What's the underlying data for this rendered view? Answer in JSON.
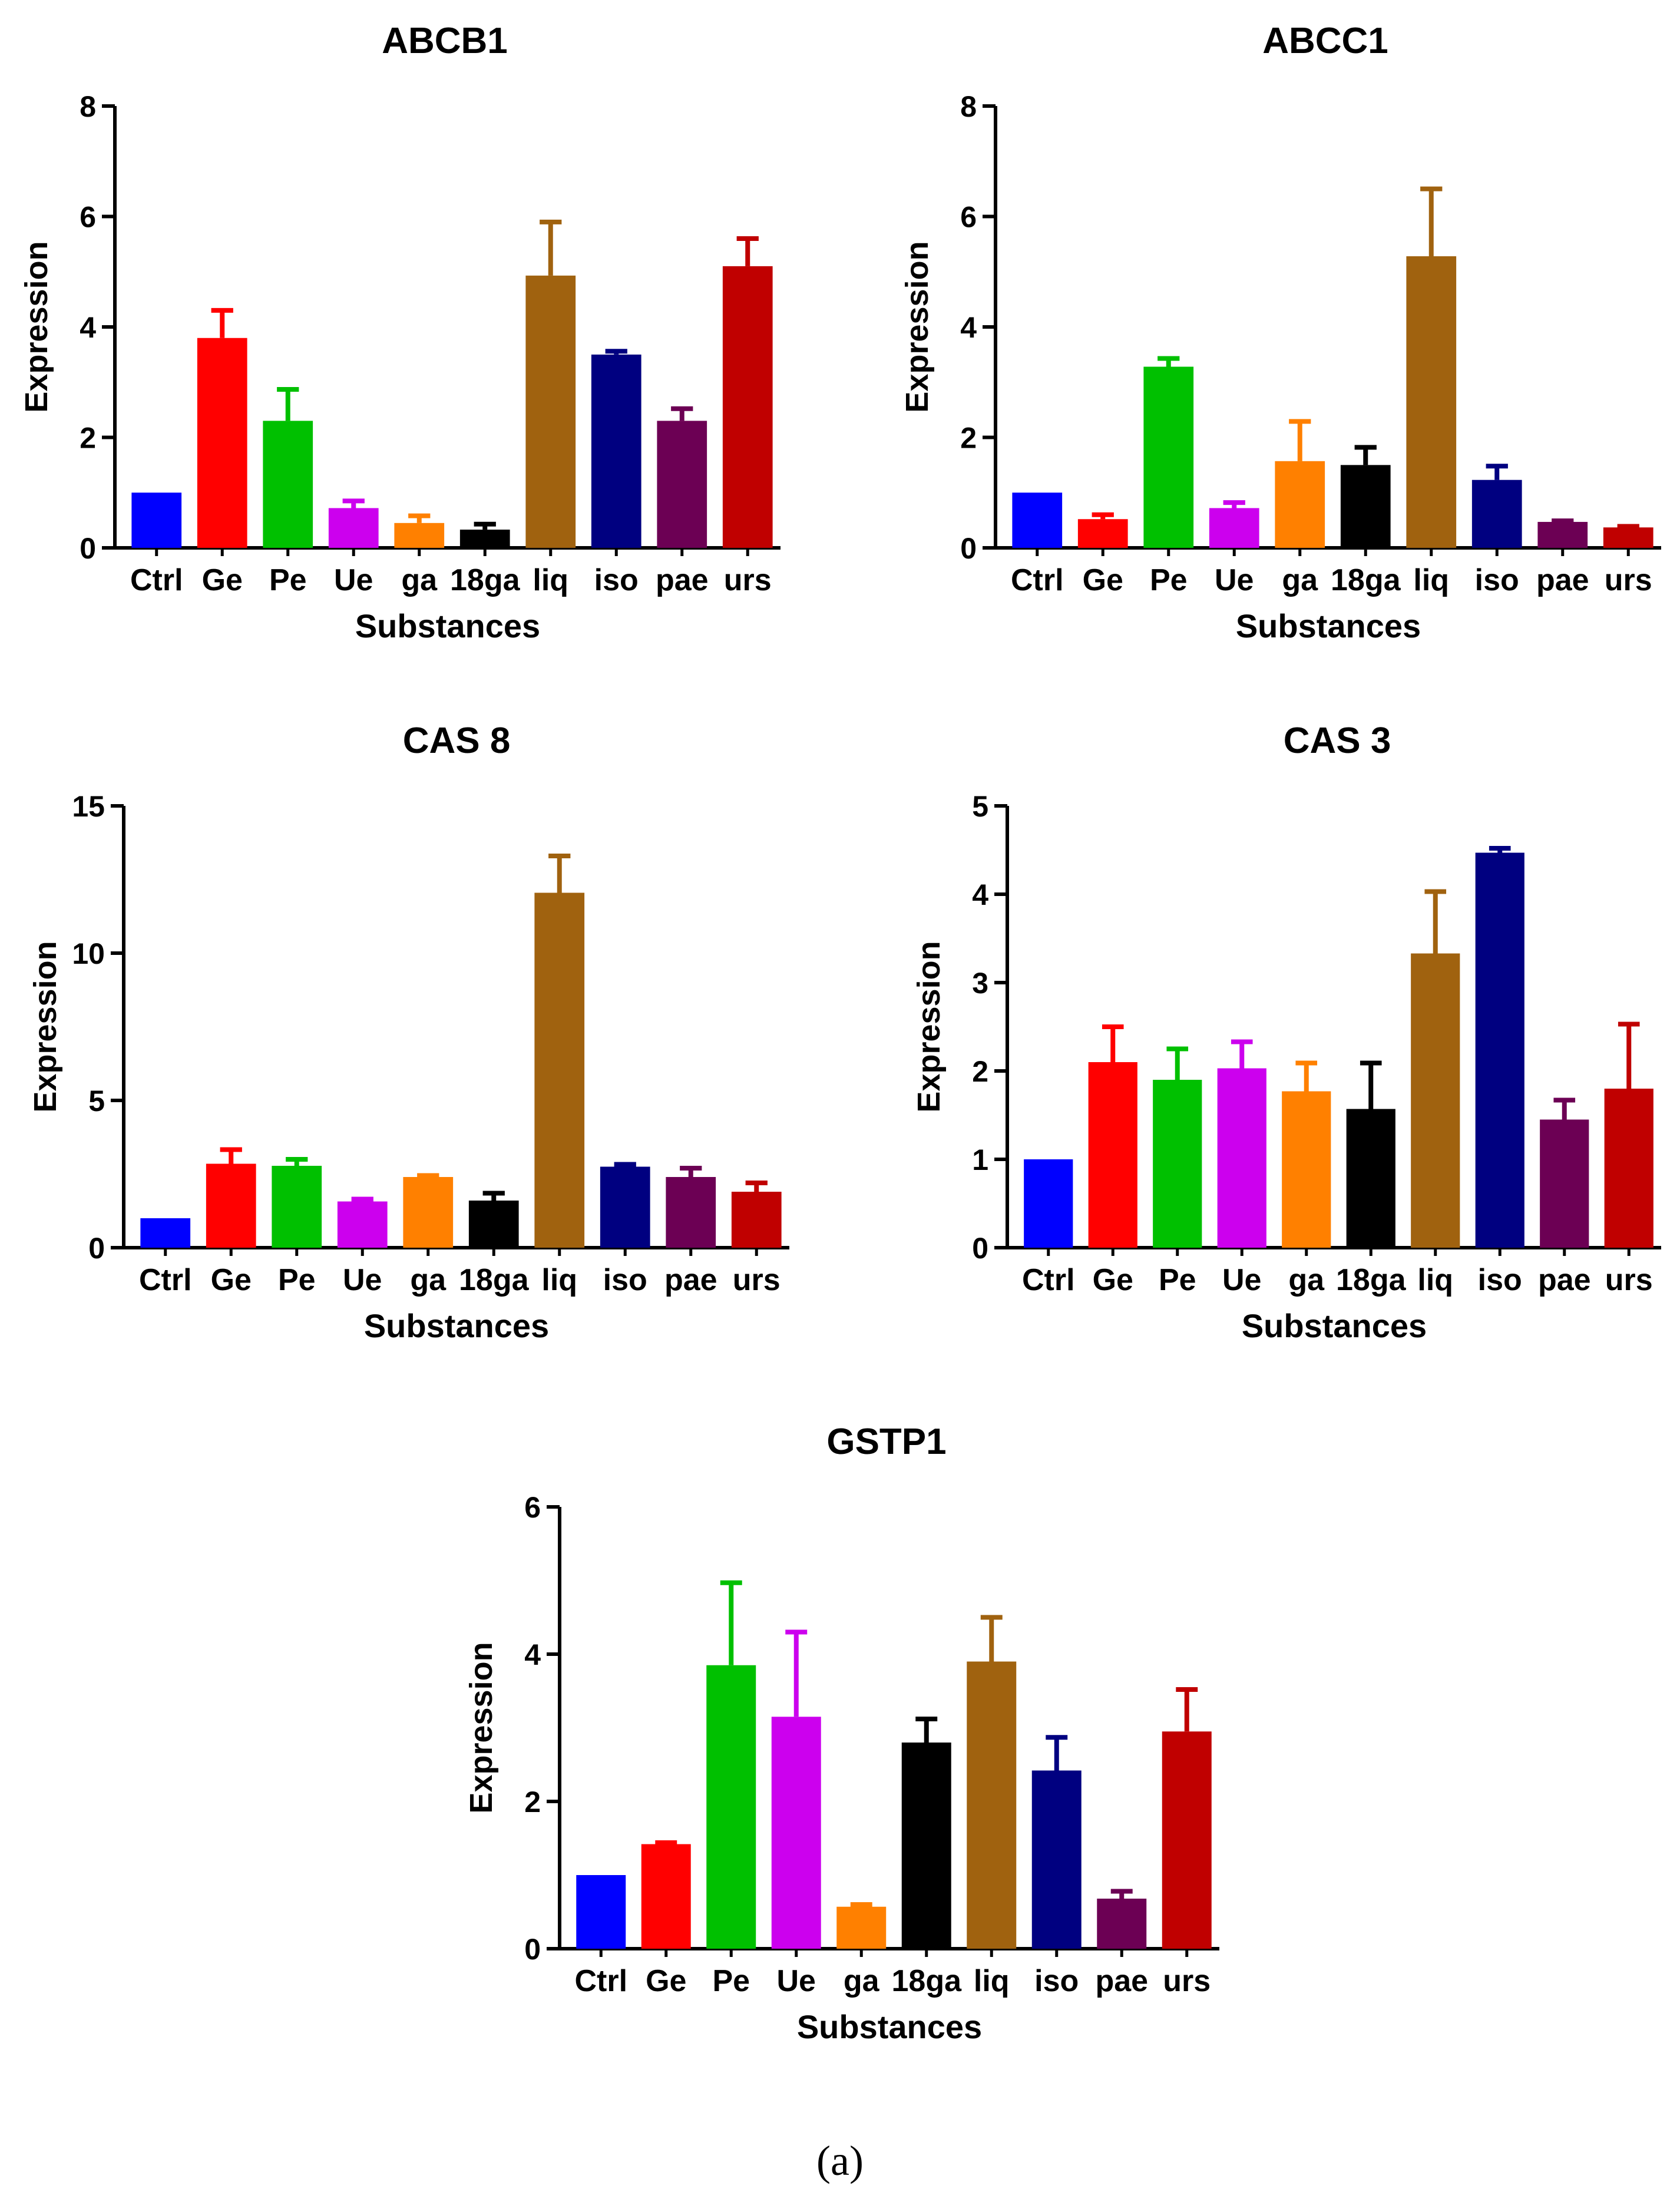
{
  "caption": "(a)",
  "chart_data": [
    {
      "type": "bar",
      "title": "ABCB1",
      "xlabel": "Substances",
      "ylabel": "Expression",
      "ylim": [
        0,
        8
      ],
      "yticks": [
        "0",
        "2",
        "4",
        "6",
        "8"
      ],
      "categories": [
        "Ctrl",
        "Ge",
        "Pe",
        "Ue",
        "ga",
        "18ga",
        "liq",
        "iso",
        "pae",
        "urs"
      ],
      "values": [
        1.0,
        3.8,
        2.3,
        0.72,
        0.45,
        0.33,
        4.93,
        3.5,
        2.3,
        5.1
      ],
      "errors": [
        0.0,
        0.5,
        0.57,
        0.13,
        0.13,
        0.1,
        0.97,
        0.06,
        0.22,
        0.5
      ]
    },
    {
      "type": "bar",
      "title": "ABCC1",
      "xlabel": "Substances",
      "ylabel": "Expression",
      "ylim": [
        0,
        8
      ],
      "yticks": [
        "0",
        "2",
        "4",
        "6",
        "8"
      ],
      "categories": [
        "Ctrl",
        "Ge",
        "Pe",
        "Ue",
        "ga",
        "18ga",
        "liq",
        "iso",
        "pae",
        "urs"
      ],
      "values": [
        1.0,
        0.52,
        3.28,
        0.72,
        1.57,
        1.5,
        5.28,
        1.23,
        0.47,
        0.37
      ],
      "errors": [
        0.0,
        0.08,
        0.15,
        0.1,
        0.72,
        0.32,
        1.22,
        0.25,
        0.02,
        0.02
      ]
    },
    {
      "type": "bar",
      "title": "CAS 8",
      "xlabel": "Substances",
      "ylabel": "Expression",
      "ylim": [
        0,
        15
      ],
      "yticks": [
        "0",
        "5",
        "10",
        "15"
      ],
      "categories": [
        "Ctrl",
        "Ge",
        "Pe",
        "Ue",
        "ga",
        "18ga",
        "liq",
        "iso",
        "pae",
        "urs"
      ],
      "values": [
        1.0,
        2.85,
        2.78,
        1.57,
        2.4,
        1.6,
        12.05,
        2.75,
        2.4,
        1.9
      ],
      "errors": [
        0.0,
        0.48,
        0.22,
        0.08,
        0.05,
        0.25,
        1.25,
        0.08,
        0.3,
        0.3
      ]
    },
    {
      "type": "bar",
      "title": "CAS 3",
      "xlabel": "Substances",
      "ylabel": "Expression",
      "ylim": [
        0,
        5
      ],
      "yticks": [
        "0",
        "1",
        "2",
        "3",
        "4",
        "5"
      ],
      "categories": [
        "Ctrl",
        "Ge",
        "Pe",
        "Ue",
        "ga",
        "18ga",
        "liq",
        "iso",
        "pae",
        "urs"
      ],
      "values": [
        1.0,
        2.1,
        1.9,
        2.03,
        1.77,
        1.57,
        3.33,
        4.47,
        1.45,
        1.8
      ],
      "errors": [
        0.0,
        0.4,
        0.35,
        0.3,
        0.32,
        0.52,
        0.7,
        0.05,
        0.22,
        0.73
      ]
    },
    {
      "type": "bar",
      "title": "GSTP1",
      "xlabel": "Substances",
      "ylabel": "Expression",
      "ylim": [
        0,
        6
      ],
      "yticks": [
        "0",
        "2",
        "4",
        "6"
      ],
      "categories": [
        "Ctrl",
        "Ge",
        "Pe",
        "Ue",
        "ga",
        "18ga",
        "liq",
        "iso",
        "pae",
        "urs"
      ],
      "values": [
        1.0,
        1.42,
        3.85,
        3.15,
        0.57,
        2.8,
        3.9,
        2.42,
        0.68,
        2.95
      ],
      "errors": [
        0.0,
        0.02,
        1.12,
        1.15,
        0.03,
        0.32,
        0.6,
        0.45,
        0.1,
        0.57
      ]
    }
  ],
  "colors": {
    "Ctrl": "#0000ff",
    "Ge": "#ff0000",
    "Pe": "#00c000",
    "Ue": "#cc00ee",
    "ga": "#ff8000",
    "18ga": "#000000",
    "liq": "#a0620f",
    "iso": "#000080",
    "pae": "#6c0054",
    "urs": "#c00000"
  }
}
